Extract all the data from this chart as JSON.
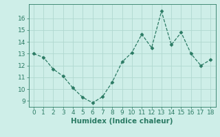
{
  "x": [
    0,
    1,
    2,
    3,
    4,
    5,
    6,
    7,
    8,
    9,
    10,
    11,
    12,
    13,
    14,
    15,
    16,
    17,
    18
  ],
  "y": [
    13.0,
    12.7,
    11.7,
    11.1,
    10.1,
    9.3,
    8.85,
    9.35,
    10.6,
    12.3,
    13.1,
    14.65,
    13.5,
    16.6,
    13.75,
    14.8,
    13.0,
    12.0,
    12.5
  ],
  "line_color": "#2a7a63",
  "marker": "D",
  "marker_size": 2.5,
  "xlabel": "Humidex (Indice chaleur)",
  "xlabel_fontsize": 7.5,
  "bg_color": "#ceeee8",
  "grid_color": "#b0d8d0",
  "tick_color": "#2a7a63",
  "spine_color": "#2a7a63",
  "ylim": [
    8.5,
    17.2
  ],
  "xlim": [
    -0.5,
    18.5
  ],
  "yticks": [
    9,
    10,
    11,
    12,
    13,
    14,
    15,
    16
  ],
  "xticks": [
    0,
    1,
    2,
    3,
    4,
    5,
    6,
    7,
    8,
    9,
    10,
    11,
    12,
    13,
    14,
    15,
    16,
    17,
    18
  ],
  "tick_labelsize": 6.5
}
